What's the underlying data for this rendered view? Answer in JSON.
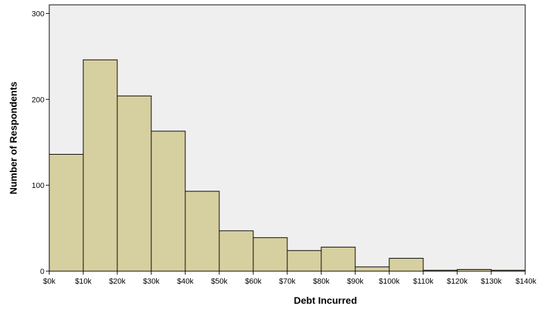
{
  "chart_data": {
    "type": "bar",
    "subtype": "histogram",
    "xlabel": "Debt Incurred",
    "ylabel": "Number of Respondents",
    "ylim": [
      0,
      310
    ],
    "yticks": [
      0,
      100,
      200,
      300
    ],
    "x_ticks": [
      "$0k",
      "$10k",
      "$20k",
      "$30k",
      "$40k",
      "$50k",
      "$60k",
      "$70k",
      "$80k",
      "$90k",
      "$100k",
      "$110k",
      "$120k",
      "$130k",
      "$140k"
    ],
    "bins": [
      {
        "from": 0,
        "to": 10,
        "value": 136
      },
      {
        "from": 10,
        "to": 20,
        "value": 246
      },
      {
        "from": 20,
        "to": 30,
        "value": 204
      },
      {
        "from": 30,
        "to": 40,
        "value": 163
      },
      {
        "from": 40,
        "to": 50,
        "value": 93
      },
      {
        "from": 50,
        "to": 60,
        "value": 47
      },
      {
        "from": 60,
        "to": 70,
        "value": 39
      },
      {
        "from": 70,
        "to": 80,
        "value": 24
      },
      {
        "from": 80,
        "to": 90,
        "value": 28
      },
      {
        "from": 90,
        "to": 100,
        "value": 5
      },
      {
        "from": 100,
        "to": 110,
        "value": 15
      },
      {
        "from": 110,
        "to": 120,
        "value": 1
      },
      {
        "from": 120,
        "to": 130,
        "value": 2
      },
      {
        "from": 130,
        "to": 140,
        "value": 1
      }
    ],
    "grid": false,
    "bar_color": "#d6d0a0",
    "bar_edge_color": "#000000",
    "plot_background": "#efefef"
  }
}
